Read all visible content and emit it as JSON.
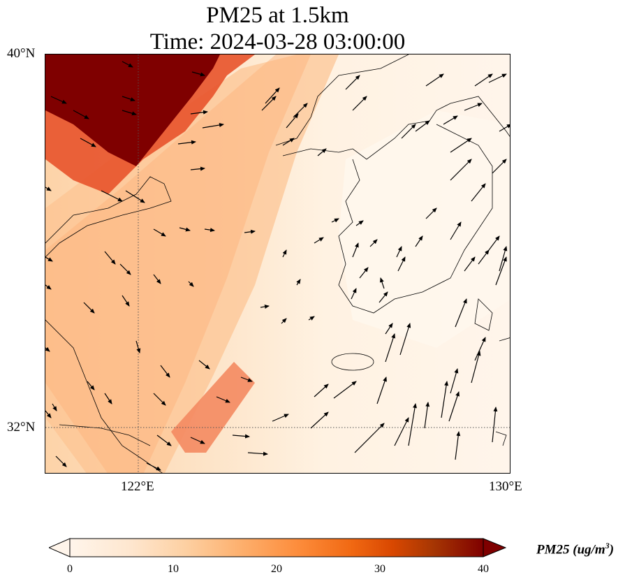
{
  "title": {
    "line1": "PM25 at 1.5km",
    "line2": "Time: 2024-03-28 03:00:00"
  },
  "axes": {
    "lat_ticks": [
      "40°N",
      "32°N"
    ],
    "lon_ticks": [
      "122°E",
      "130°E"
    ]
  },
  "colorbar": {
    "label_text": "PM25 (ug/m",
    "label_exp": "3",
    "label_close": ")",
    "ticks": [
      "0",
      "10",
      "20",
      "30",
      "40"
    ],
    "range": [
      0,
      40
    ],
    "extend": "both",
    "colors": [
      "#fff5eb",
      "#fee6ce",
      "#fdd0a2",
      "#fdae6b",
      "#fd8d3c",
      "#f16913",
      "#d94801",
      "#a63603",
      "#7f0000"
    ]
  },
  "map": {
    "variable": "PM25",
    "level": "1.5km",
    "lon_range": [
      120,
      130
    ],
    "lat_range": [
      31,
      40
    ],
    "gridlines": "dotted"
  }
}
